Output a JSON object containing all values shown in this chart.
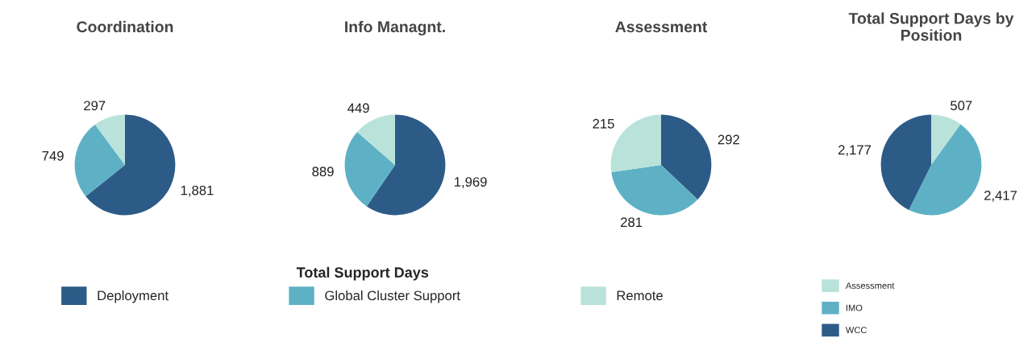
{
  "chart_data": [
    {
      "type": "pie",
      "title": "Coordination",
      "categories": [
        "Deployment",
        "Global Cluster Support",
        "Remote"
      ],
      "values": [
        1881,
        749,
        297
      ],
      "value_labels": [
        "1,881",
        "749",
        "297"
      ],
      "colors": [
        "#2d5b88",
        "#5eb1c5",
        "#b9e3da"
      ],
      "legend": "bottom",
      "legend_title": "Total Support Days"
    },
    {
      "type": "pie",
      "title": "Info Managnt.",
      "categories": [
        null,
        null,
        null
      ],
      "values": [
        1969,
        889,
        449
      ],
      "value_labels": [
        "1,969",
        "889",
        "449"
      ],
      "colors": [
        "#2d5b88",
        "#5eb1c5",
        "#b9e3da"
      ],
      "legend": false
    },
    {
      "type": "pie",
      "title": "Assessment",
      "categories": [
        null,
        null,
        null
      ],
      "values": [
        292,
        281,
        215
      ],
      "value_labels": [
        "292",
        "281",
        "215"
      ],
      "colors": [
        "#2d5b88",
        "#5eb1c5",
        "#b9e3da"
      ],
      "legend": false
    },
    {
      "type": "pie",
      "title": "Total Support Days by Position",
      "categories": [
        "Assessment",
        "IMO",
        "WCC"
      ],
      "values": [
        507,
        2417,
        2177
      ],
      "value_labels": [
        "507",
        "2,417",
        "2,177"
      ],
      "colors": [
        "#b9e3da",
        "#5eb1c5",
        "#2d5b88"
      ],
      "legend": "bottom"
    }
  ]
}
